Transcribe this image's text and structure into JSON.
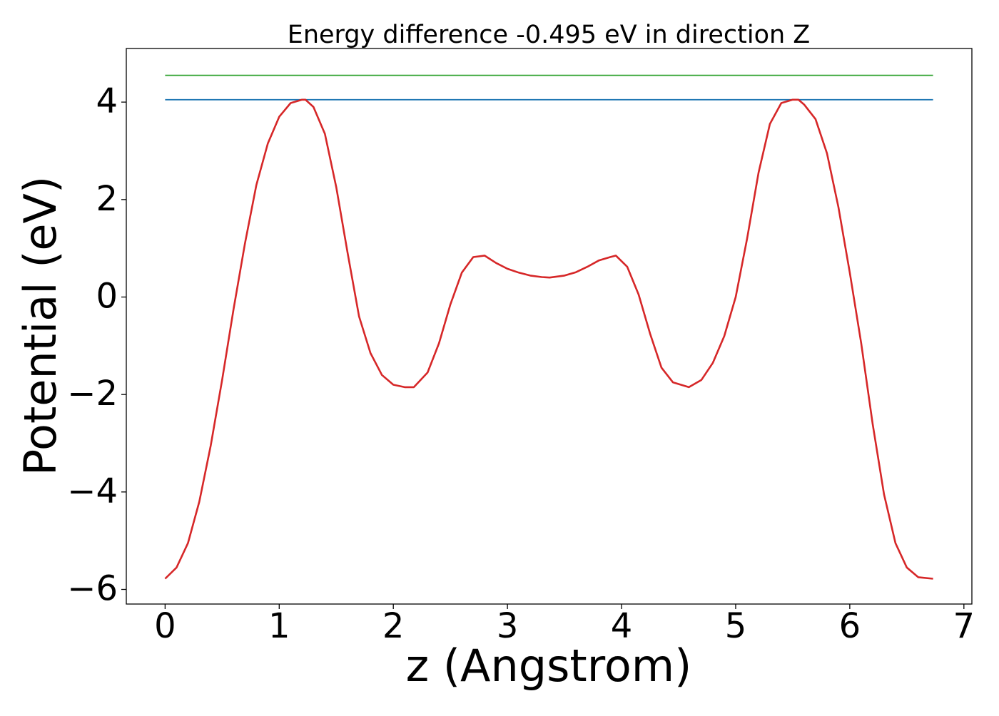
{
  "chart_data": {
    "type": "line",
    "title": "Energy difference -0.495 eV in direction Z",
    "xlabel": "z (Angstrom)",
    "ylabel": "Potential (eV)",
    "xlim": [
      -0.34,
      7.07
    ],
    "ylim": [
      -6.3,
      5.1
    ],
    "grid": false,
    "legend": "none",
    "xticks": [
      0,
      1,
      2,
      3,
      4,
      5,
      6,
      7
    ],
    "yticks": [
      -6,
      -4,
      -2,
      0,
      2,
      4
    ],
    "xtick_labels": [
      "0",
      "1",
      "2",
      "3",
      "4",
      "5",
      "6",
      "7"
    ],
    "ytick_labels": [
      "−6",
      "−4",
      "−2",
      "0",
      "2",
      "4"
    ],
    "series": [
      {
        "color": "#2ca02c",
        "x": [
          0.0,
          6.73
        ],
        "y": [
          4.55,
          4.55
        ]
      },
      {
        "color": "#1f77b4",
        "x": [
          0.0,
          6.73
        ],
        "y": [
          4.05,
          4.05
        ]
      },
      {
        "color": "#d62728",
        "x": [
          0.0,
          0.1,
          0.2,
          0.3,
          0.4,
          0.5,
          0.6,
          0.7,
          0.8,
          0.9,
          1.0,
          1.1,
          1.2,
          1.23,
          1.3,
          1.4,
          1.5,
          1.6,
          1.7,
          1.8,
          1.9,
          2.0,
          2.1,
          2.18,
          2.3,
          2.4,
          2.5,
          2.6,
          2.7,
          2.8,
          2.9,
          3.0,
          3.1,
          3.2,
          3.3,
          3.37,
          3.5,
          3.6,
          3.7,
          3.8,
          3.9,
          3.95,
          4.05,
          4.15,
          4.25,
          4.35,
          4.45,
          4.59,
          4.7,
          4.8,
          4.9,
          5.0,
          5.1,
          5.2,
          5.3,
          5.4,
          5.5,
          5.55,
          5.6,
          5.7,
          5.8,
          5.9,
          6.0,
          6.1,
          6.2,
          6.3,
          6.4,
          6.5,
          6.6,
          6.73
        ],
        "y": [
          -5.78,
          -5.55,
          -5.05,
          -4.2,
          -3.05,
          -1.7,
          -0.25,
          1.1,
          2.3,
          3.15,
          3.7,
          3.98,
          4.05,
          4.05,
          3.9,
          3.35,
          2.25,
          0.9,
          -0.4,
          -1.15,
          -1.6,
          -1.8,
          -1.85,
          -1.85,
          -1.55,
          -0.95,
          -0.15,
          0.5,
          0.82,
          0.85,
          0.7,
          0.58,
          0.5,
          0.44,
          0.41,
          0.4,
          0.44,
          0.51,
          0.62,
          0.75,
          0.82,
          0.85,
          0.62,
          0.05,
          -0.75,
          -1.45,
          -1.75,
          -1.85,
          -1.7,
          -1.35,
          -0.8,
          0.0,
          1.2,
          2.55,
          3.55,
          3.98,
          4.05,
          4.05,
          3.95,
          3.65,
          2.95,
          1.85,
          0.5,
          -0.95,
          -2.6,
          -4.05,
          -5.05,
          -5.55,
          -5.75,
          -5.78
        ]
      }
    ]
  }
}
